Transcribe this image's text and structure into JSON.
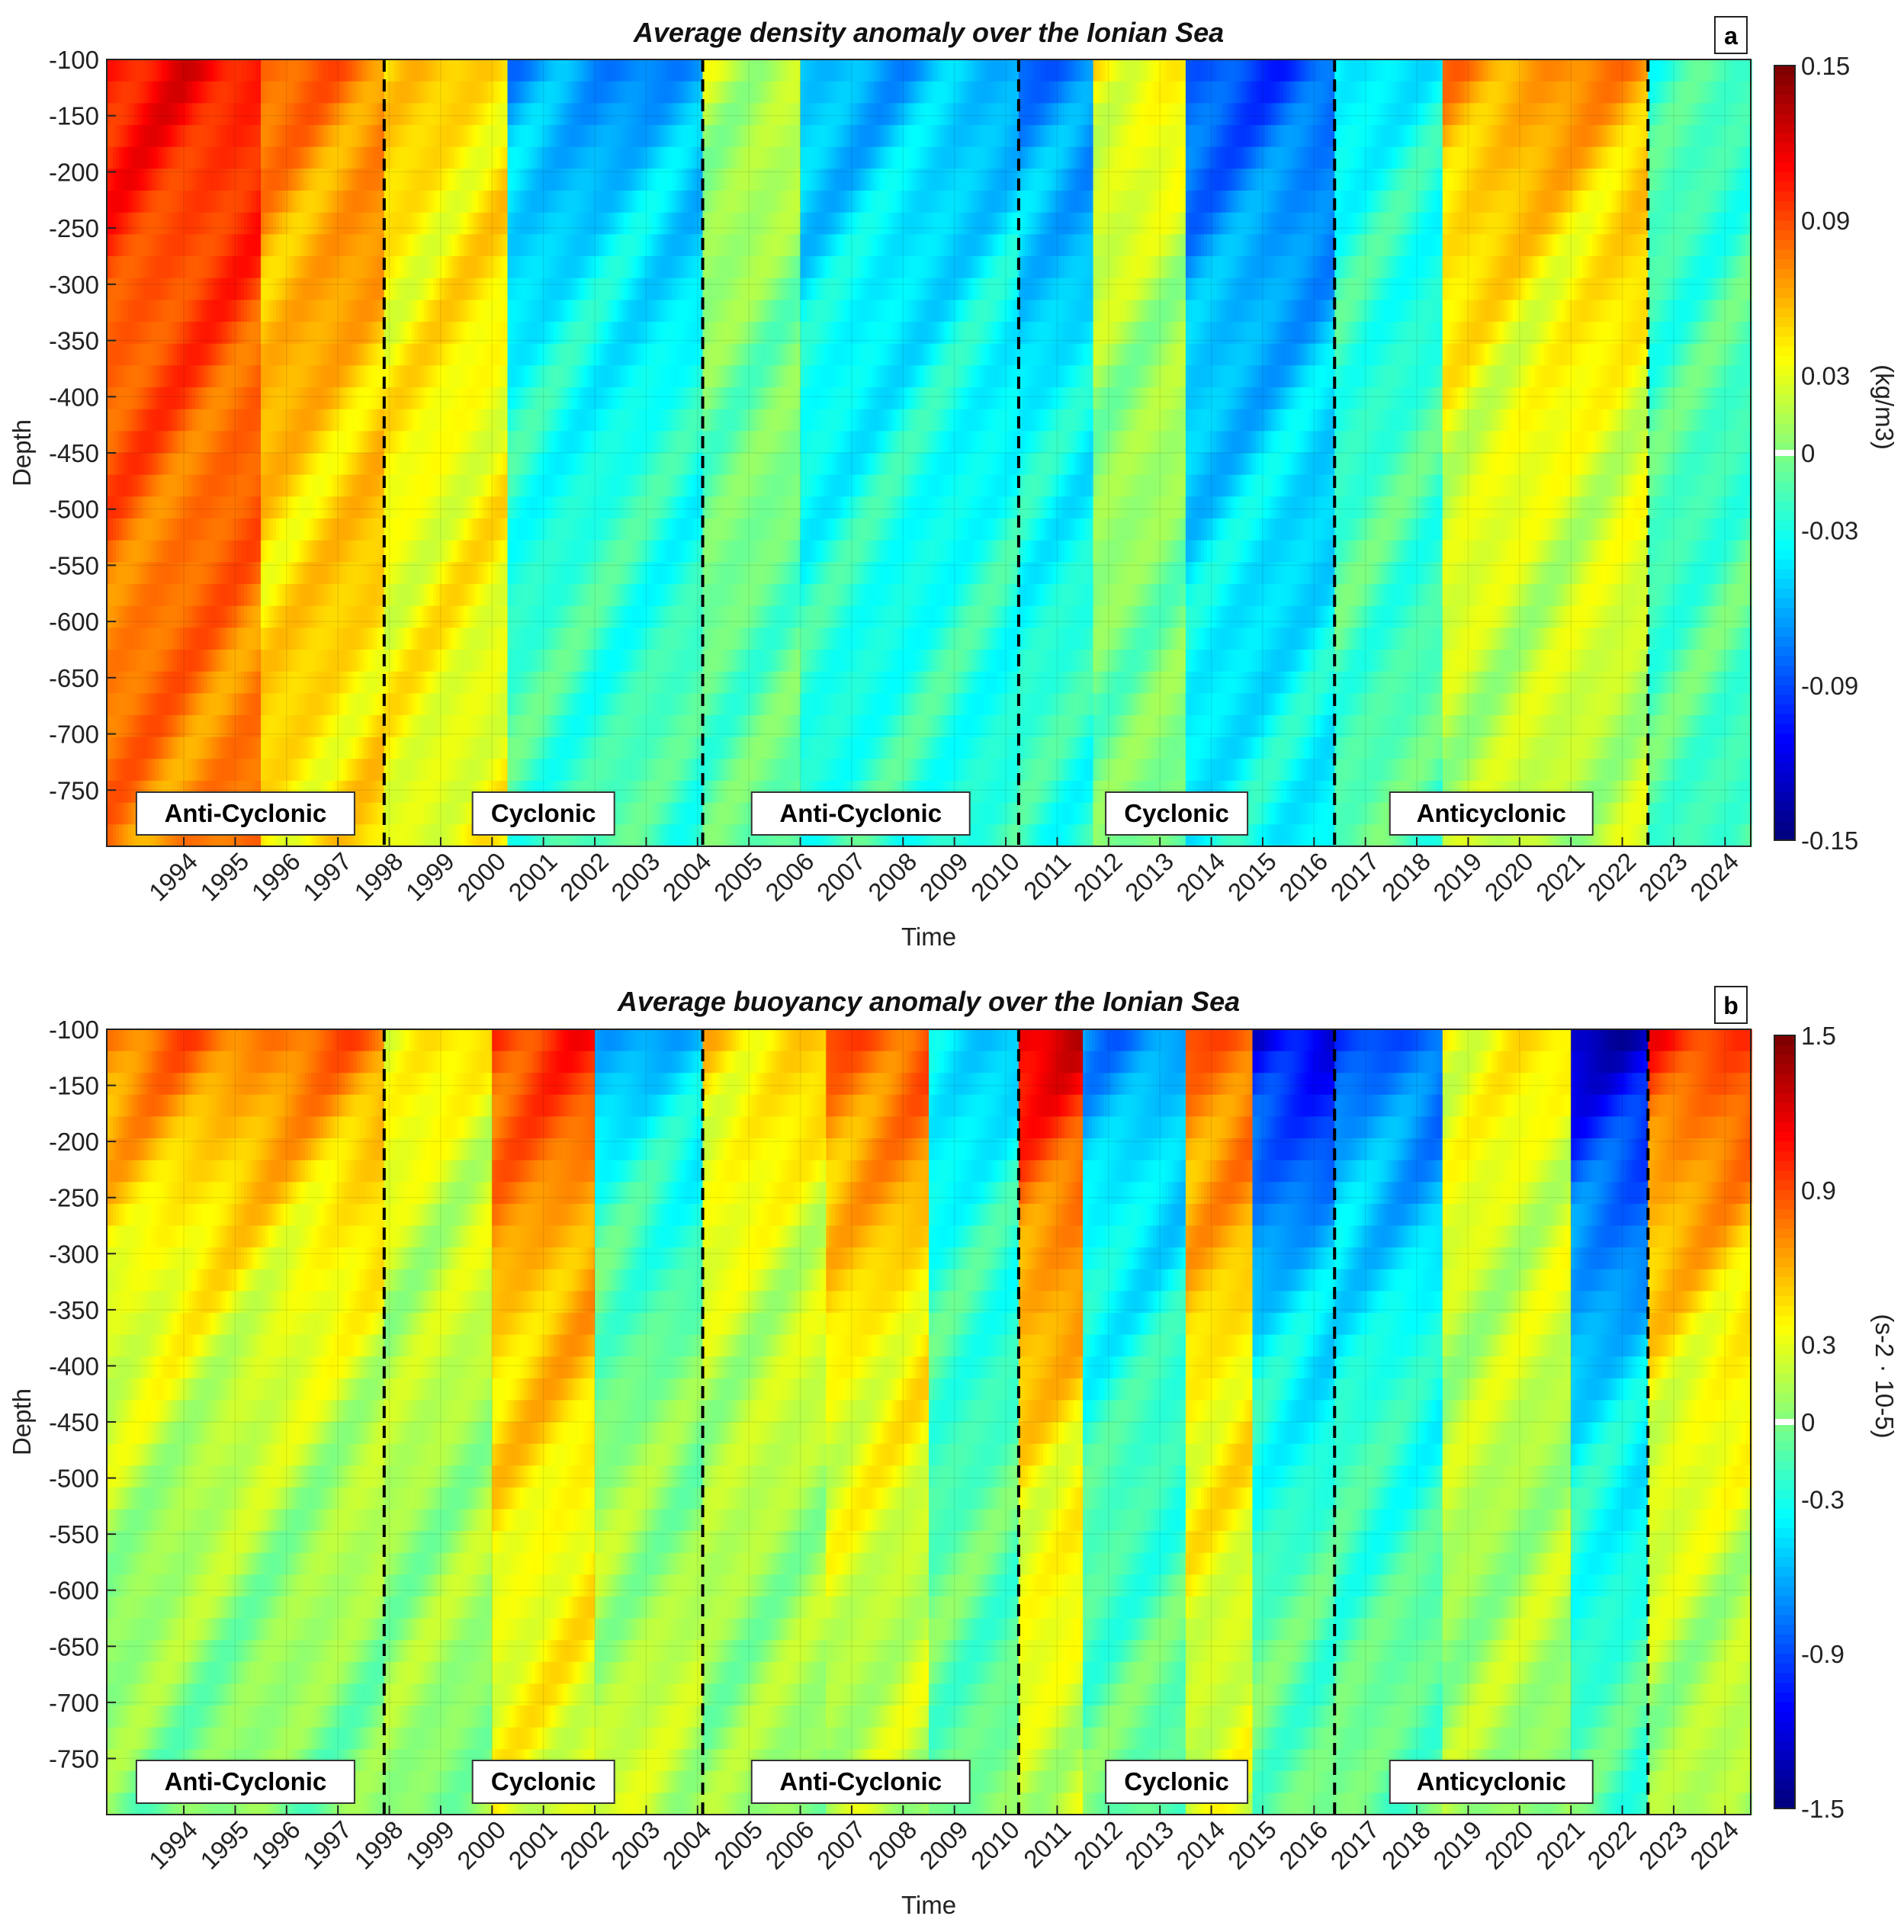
{
  "chart_data": [
    {
      "type": "heatmap",
      "panel_label": "a",
      "title": "Average density anomaly over the Ionian Sea",
      "xlabel": "Time",
      "ylabel": "Depth",
      "x_ticks": [
        "1994",
        "1995",
        "1996",
        "1997",
        "1998",
        "1999",
        "2000",
        "2001",
        "2002",
        "2003",
        "2004",
        "2005",
        "2006",
        "2007",
        "2008",
        "2009",
        "2010",
        "2011",
        "2012",
        "2013",
        "2014",
        "2015",
        "2016",
        "2017",
        "2018",
        "2019",
        "2020",
        "2021",
        "2022",
        "2023",
        "2024"
      ],
      "y_ticks": [
        "-100",
        "-150",
        "-200",
        "-250",
        "-300",
        "-350",
        "-400",
        "-450",
        "-500",
        "-550",
        "-600",
        "-650",
        "-700",
        "-750"
      ],
      "xlim": [
        1993.0,
        2025.0
      ],
      "ylim": [
        -800,
        -100
      ],
      "colorbar": {
        "label": "(kg/m3)",
        "ticks": [
          "0.15",
          "0.09",
          "0.03",
          "0",
          "-0.03",
          "-0.09",
          "-0.15"
        ],
        "range": [
          -0.15,
          0.15
        ]
      },
      "regime_boundaries": [
        1998.4,
        2004.6,
        2010.75,
        2016.9,
        2023.0
      ],
      "regimes": [
        {
          "label": "Anti-Cyclonic",
          "start": 1993.0,
          "end": 1998.4
        },
        {
          "label": "Cyclonic",
          "start": 1998.4,
          "end": 2004.6
        },
        {
          "label": "Anti-Cyclonic",
          "start": 2004.6,
          "end": 2010.75
        },
        {
          "label": "Cyclonic",
          "start": 2010.75,
          "end": 2016.9
        },
        {
          "label": "Anticyclonic",
          "start": 2016.9,
          "end": 2023.0
        }
      ],
      "approx_anomaly_by_period": [
        {
          "start": 1993.0,
          "end": 1996.0,
          "upper": 0.11,
          "deep": 0.07
        },
        {
          "start": 1996.0,
          "end": 1998.4,
          "upper": 0.08,
          "deep": 0.04
        },
        {
          "start": 1998.4,
          "end": 2000.8,
          "upper": 0.05,
          "deep": 0.03
        },
        {
          "start": 2000.8,
          "end": 2004.6,
          "upper": -0.07,
          "deep": -0.01
        },
        {
          "start": 2004.6,
          "end": 2006.5,
          "upper": 0.02,
          "deep": -0.015
        },
        {
          "start": 2006.5,
          "end": 2010.75,
          "upper": -0.06,
          "deep": -0.02
        },
        {
          "start": 2010.75,
          "end": 2012.2,
          "upper": -0.08,
          "deep": -0.015
        },
        {
          "start": 2012.2,
          "end": 2014.0,
          "upper": 0.04,
          "deep": -0.01
        },
        {
          "start": 2014.0,
          "end": 2016.9,
          "upper": -0.09,
          "deep": -0.03
        },
        {
          "start": 2016.9,
          "end": 2019.0,
          "upper": -0.04,
          "deep": -0.01
        },
        {
          "start": 2019.0,
          "end": 2023.0,
          "upper": 0.07,
          "deep": 0.01
        },
        {
          "start": 2023.0,
          "end": 2025.0,
          "upper": -0.02,
          "deep": -0.015
        }
      ]
    },
    {
      "type": "heatmap",
      "panel_label": "b",
      "title": "Average buoyancy anomaly over the Ionian Sea",
      "xlabel": "Time",
      "ylabel": "Depth",
      "x_ticks": [
        "1994",
        "1995",
        "1996",
        "1997",
        "1998",
        "1999",
        "2000",
        "2001",
        "2002",
        "2003",
        "2004",
        "2005",
        "2006",
        "2007",
        "2008",
        "2009",
        "2010",
        "2011",
        "2012",
        "2013",
        "2014",
        "2015",
        "2016",
        "2017",
        "2018",
        "2019",
        "2020",
        "2021",
        "2022",
        "2023",
        "2024"
      ],
      "y_ticks": [
        "-100",
        "-150",
        "-200",
        "-250",
        "-300",
        "-350",
        "-400",
        "-450",
        "-500",
        "-550",
        "-600",
        "-650",
        "-700",
        "-750"
      ],
      "xlim": [
        1993.0,
        2025.0
      ],
      "ylim": [
        -800,
        -100
      ],
      "colorbar": {
        "label": "(s-2 · 10-5)",
        "ticks": [
          "1.5",
          "0.9",
          "0.3",
          "0",
          "-0.3",
          "-0.9",
          "-1.5"
        ],
        "range": [
          -1.5,
          1.5
        ]
      },
      "regime_boundaries": [
        1998.4,
        2004.6,
        2010.75,
        2016.9,
        2023.0
      ],
      "regimes": [
        {
          "label": "Anti-Cyclonic",
          "start": 1993.0,
          "end": 1998.4
        },
        {
          "label": "Cyclonic",
          "start": 1998.4,
          "end": 2004.6
        },
        {
          "label": "Anti-Cyclonic",
          "start": 2004.6,
          "end": 2010.75
        },
        {
          "label": "Cyclonic",
          "start": 2010.75,
          "end": 2016.9
        },
        {
          "label": "Anticyclonic",
          "start": 2016.9,
          "end": 2023.0
        }
      ],
      "approx_anomaly_by_period": [
        {
          "start": 1993.0,
          "end": 1998.4,
          "upper": 0.8,
          "deep": -0.1
        },
        {
          "start": 1998.4,
          "end": 2000.5,
          "upper": 0.4,
          "deep": 0.0
        },
        {
          "start": 2000.5,
          "end": 2002.5,
          "upper": 1.0,
          "deep": 0.2
        },
        {
          "start": 2002.5,
          "end": 2004.6,
          "upper": -0.6,
          "deep": 0.3
        },
        {
          "start": 2004.6,
          "end": 2007.0,
          "upper": 0.5,
          "deep": 0.0
        },
        {
          "start": 2007.0,
          "end": 2009.0,
          "upper": 0.9,
          "deep": 0.05
        },
        {
          "start": 2009.0,
          "end": 2010.75,
          "upper": -0.5,
          "deep": 0.0
        },
        {
          "start": 2010.75,
          "end": 2012.0,
          "upper": 1.2,
          "deep": 0.1
        },
        {
          "start": 2012.0,
          "end": 2014.0,
          "upper": -0.7,
          "deep": 0.0
        },
        {
          "start": 2014.0,
          "end": 2015.3,
          "upper": 0.9,
          "deep": 0.15
        },
        {
          "start": 2015.3,
          "end": 2016.9,
          "upper": -1.2,
          "deep": 0.1
        },
        {
          "start": 2016.9,
          "end": 2019.0,
          "upper": -0.9,
          "deep": 0.05
        },
        {
          "start": 2019.0,
          "end": 2021.5,
          "upper": 0.4,
          "deep": 0.05
        },
        {
          "start": 2021.5,
          "end": 2023.0,
          "upper": -1.3,
          "deep": 0.0
        },
        {
          "start": 2023.0,
          "end": 2025.0,
          "upper": 1.0,
          "deep": 0.0
        }
      ]
    }
  ]
}
